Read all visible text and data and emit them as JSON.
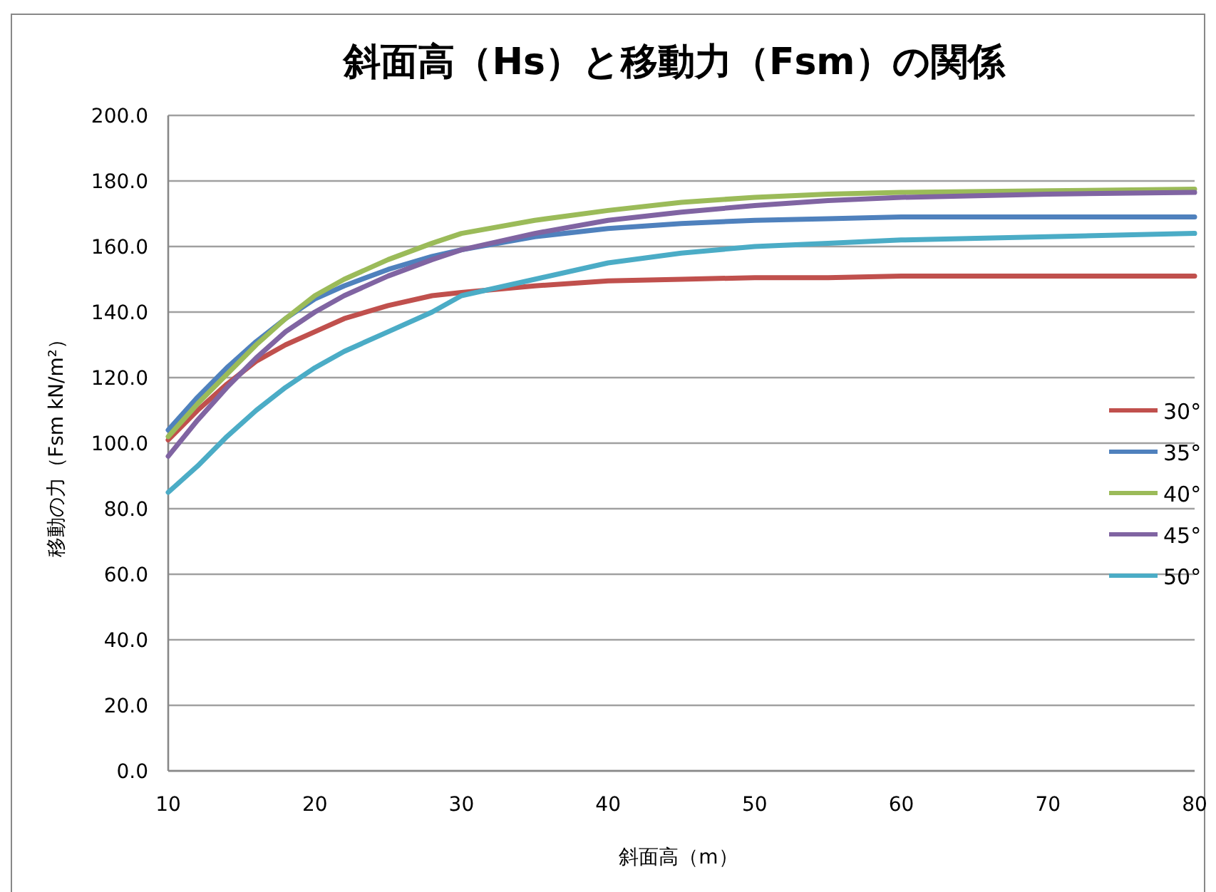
{
  "chart_data": {
    "type": "line",
    "title": "斜面高（Hs）と移動力（Fsm）の関係",
    "xlabel": "斜面高（m）",
    "ylabel": "移動の力（Fsm kN/m²）",
    "x": [
      10,
      12,
      14,
      16,
      18,
      20,
      22,
      25,
      28,
      30,
      35,
      40,
      45,
      50,
      55,
      60,
      70,
      80
    ],
    "series": [
      {
        "name": "30°",
        "color": "#c0504d",
        "values": [
          101,
          110,
          118,
          125,
          130,
          134,
          138,
          142,
          145,
          146,
          148,
          149.5,
          150,
          150.5,
          150.5,
          151,
          151,
          151
        ]
      },
      {
        "name": "35°",
        "color": "#4f81bd",
        "values": [
          104,
          114,
          123,
          131,
          138,
          144,
          148,
          153,
          157,
          159,
          163,
          165.5,
          167,
          168,
          168.5,
          169,
          169,
          169
        ]
      },
      {
        "name": "40°",
        "color": "#9bbb59",
        "values": [
          102,
          112,
          121,
          130,
          138,
          145,
          150,
          156,
          161,
          164,
          168,
          171,
          173.5,
          175,
          176,
          176.5,
          177,
          177.5
        ]
      },
      {
        "name": "45°",
        "color": "#8064a2",
        "values": [
          96,
          107,
          117,
          126,
          134,
          140,
          145,
          151,
          156,
          159,
          164,
          168,
          170.5,
          172.5,
          174,
          175,
          176,
          176.5
        ]
      },
      {
        "name": "50°",
        "color": "#4bacc6",
        "values": [
          85,
          93,
          102,
          110,
          117,
          123,
          128,
          134,
          140,
          145,
          150,
          155,
          158,
          160,
          161,
          162,
          163,
          164
        ]
      }
    ],
    "xlim": [
      10,
      80
    ],
    "xticks": [
      10,
      20,
      30,
      40,
      50,
      60,
      70,
      80
    ],
    "ylim": [
      0,
      200
    ],
    "yticks": [
      {
        "value": 0,
        "label": "0.0"
      },
      {
        "value": 20,
        "label": "20.0"
      },
      {
        "value": 40,
        "label": "40.0"
      },
      {
        "value": 60,
        "label": "60.0"
      },
      {
        "value": 80,
        "label": "80.0"
      },
      {
        "value": 100,
        "label": "100.0"
      },
      {
        "value": 120,
        "label": "120.0"
      },
      {
        "value": 140,
        "label": "140.0"
      },
      {
        "value": 160,
        "label": "160.0"
      },
      {
        "value": 180,
        "label": "180.0"
      },
      {
        "value": 200,
        "label": "200.0"
      }
    ],
    "grid": "y",
    "legend": "right",
    "marker": "none",
    "line_style": "solid"
  }
}
